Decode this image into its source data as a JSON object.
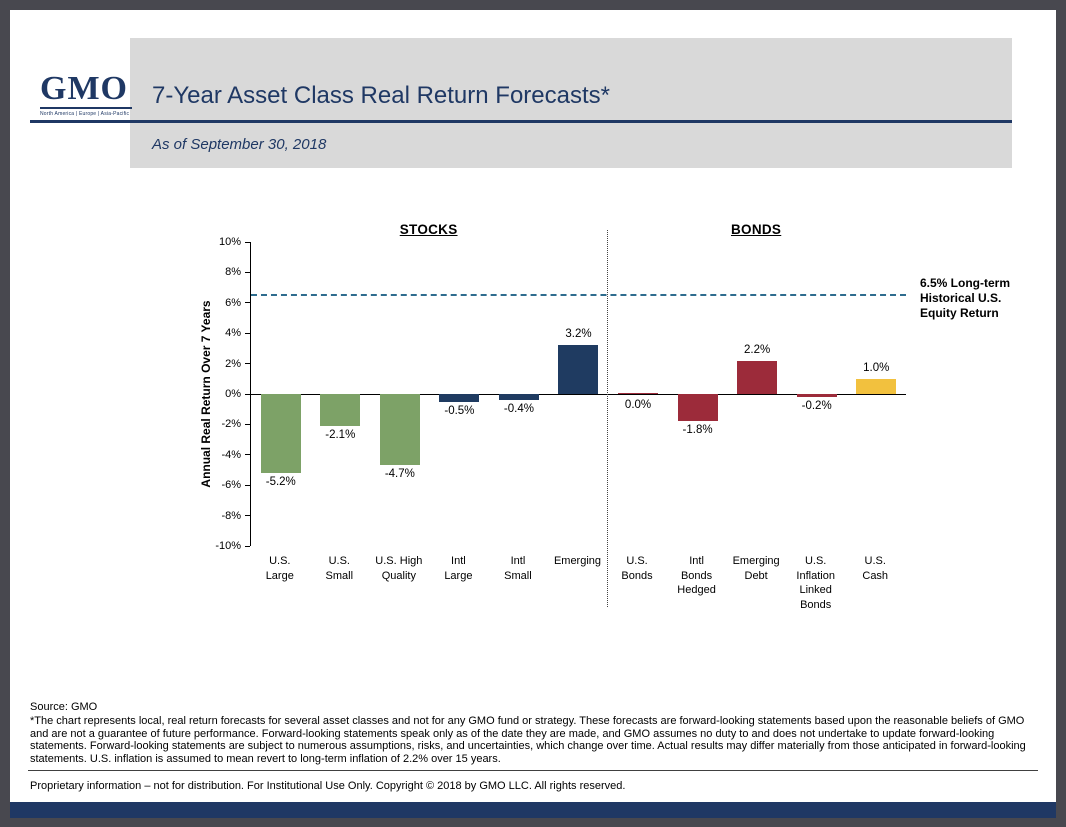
{
  "logo": {
    "text": "GMO",
    "tagline": "North America  |  Europe  |  Asia-Pacific"
  },
  "header": {
    "title": "7-Year Asset Class Real Return Forecasts*",
    "subtitle": "As of September 30, 2018"
  },
  "chart_data": {
    "type": "bar",
    "title": "7-Year Asset Class Real Return Forecasts*",
    "ylabel": "Annual Real Return Over 7 Years",
    "ylim": [
      -10,
      10
    ],
    "ytick_step": 2,
    "grid": false,
    "legend_position": "none",
    "reference_line": {
      "value": 6.5,
      "label": "6.5% Long-term\nHistorical U.S.\nEquity Return",
      "color": "#2E6C8E",
      "style": "dashed"
    },
    "groups": [
      {
        "label": "STOCKS",
        "count": 6
      },
      {
        "label": "BONDS",
        "count": 5
      }
    ],
    "bars": [
      {
        "category": "U.S. Large",
        "label_lines": [
          "U.S.",
          "Large"
        ],
        "value": -5.2,
        "display": "-5.2%",
        "color": "#7DA267",
        "group": "STOCKS"
      },
      {
        "category": "U.S. Small",
        "label_lines": [
          "U.S.",
          "Small"
        ],
        "value": -2.1,
        "display": "-2.1%",
        "color": "#7DA267",
        "group": "STOCKS"
      },
      {
        "category": "U.S. High Quality",
        "label_lines": [
          "U.S. High",
          "Quality"
        ],
        "value": -4.7,
        "display": "-4.7%",
        "color": "#7DA267",
        "group": "STOCKS"
      },
      {
        "category": "Intl Large",
        "label_lines": [
          "Intl",
          "Large"
        ],
        "value": -0.5,
        "display": "-0.5%",
        "color": "#1F3B61",
        "group": "STOCKS"
      },
      {
        "category": "Intl Small",
        "label_lines": [
          "Intl",
          "Small"
        ],
        "value": -0.4,
        "display": "-0.4%",
        "color": "#1F3B61",
        "group": "STOCKS"
      },
      {
        "category": "Emerging",
        "label_lines": [
          "Emerging"
        ],
        "value": 3.2,
        "display": "3.2%",
        "color": "#1F3B61",
        "group": "STOCKS"
      },
      {
        "category": "U.S. Bonds",
        "label_lines": [
          "U.S.",
          "Bonds"
        ],
        "value": 0.0,
        "display": "0.0%",
        "color": "#9C2B3A",
        "group": "BONDS"
      },
      {
        "category": "Intl Bonds Hedged",
        "label_lines": [
          "Intl",
          "Bonds",
          "Hedged"
        ],
        "value": -1.8,
        "display": "-1.8%",
        "color": "#9C2B3A",
        "group": "BONDS"
      },
      {
        "category": "Emerging Debt",
        "label_lines": [
          "Emerging",
          "Debt"
        ],
        "value": 2.2,
        "display": "2.2%",
        "color": "#9C2B3A",
        "group": "BONDS"
      },
      {
        "category": "U.S. Inflation Linked Bonds",
        "label_lines": [
          "U.S.",
          "Inflation",
          "Linked",
          "Bonds"
        ],
        "value": -0.2,
        "display": "-0.2%",
        "color": "#9C2B3A",
        "group": "BONDS"
      },
      {
        "category": "U.S. Cash",
        "label_lines": [
          "U.S.",
          "Cash"
        ],
        "value": 1.0,
        "display": "1.0%",
        "color": "#F2C13E",
        "group": "BONDS"
      }
    ]
  },
  "footer": {
    "source": "Source: GMO",
    "disclaimer": "*The chart represents local, real return forecasts for several asset classes and not for any GMO fund or strategy.  These forecasts are forward-looking statements based upon the reasonable beliefs of GMO and are not a guarantee of future performance.  Forward-looking statements speak only as of the date they are made, and GMO assumes no duty to and does not undertake to update forward-looking statements.  Forward-looking statements are subject to numerous assumptions, risks, and uncertainties, which change over time.  Actual results may differ materially from those anticipated in forward-looking statements. U.S. inflation is assumed to mean revert to long-term inflation of 2.2% over 15 years.",
    "legal": "Proprietary information – not for distribution. For Institutional Use Only. Copyright © 2018 by GMO LLC.  All rights reserved."
  }
}
